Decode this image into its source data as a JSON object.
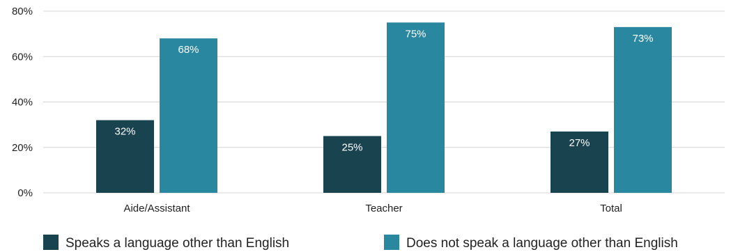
{
  "chart_data": {
    "type": "bar",
    "title": "",
    "xlabel": "",
    "ylabel": "",
    "categories": [
      "Aide/Assistant",
      "Teacher",
      "Total"
    ],
    "series": [
      {
        "name": "Speaks a language other than English",
        "color": "#1a4350",
        "values": [
          32,
          25,
          27
        ],
        "labels": [
          "32%",
          "25%",
          "27%"
        ]
      },
      {
        "name": "Does not speak a language other than English",
        "color": "#2a87a0",
        "values": [
          68,
          75,
          73
        ],
        "labels": [
          "68%",
          "75%",
          "73%"
        ]
      }
    ],
    "ylim": [
      0,
      80
    ],
    "yticks": [
      0,
      20,
      40,
      60,
      80
    ],
    "ytick_labels": [
      "0%",
      "20%",
      "40%",
      "60%",
      "80%"
    ],
    "grid": true,
    "legend_position": "bottom"
  }
}
